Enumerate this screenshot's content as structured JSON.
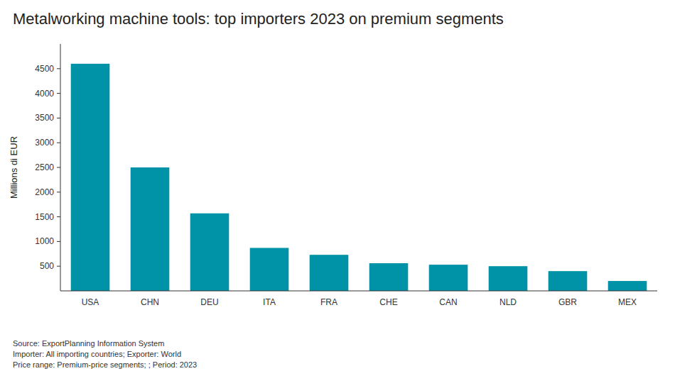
{
  "chart_data": {
    "type": "bar",
    "title": "Metalworking machine tools: top importers 2023 on premium segments",
    "ylabel": "Millions di EUR",
    "categories": [
      "USA",
      "CHN",
      "DEU",
      "ITA",
      "FRA",
      "CHE",
      "CAN",
      "NLD",
      "GBR",
      "MEX"
    ],
    "values": [
      4600,
      2500,
      1570,
      870,
      730,
      560,
      530,
      500,
      400,
      200
    ],
    "color": "#0093a7",
    "ylim": [
      0,
      5000
    ],
    "yticks": [
      500,
      1000,
      1500,
      2000,
      2500,
      3000,
      3500,
      4000,
      4500
    ],
    "grid": false,
    "annotations": [
      "Source: ExportPlanning Information System",
      "Importer: All importing countries; Exporter: World",
      "Price range: Premium-price segments; ; Period: 2023"
    ]
  }
}
